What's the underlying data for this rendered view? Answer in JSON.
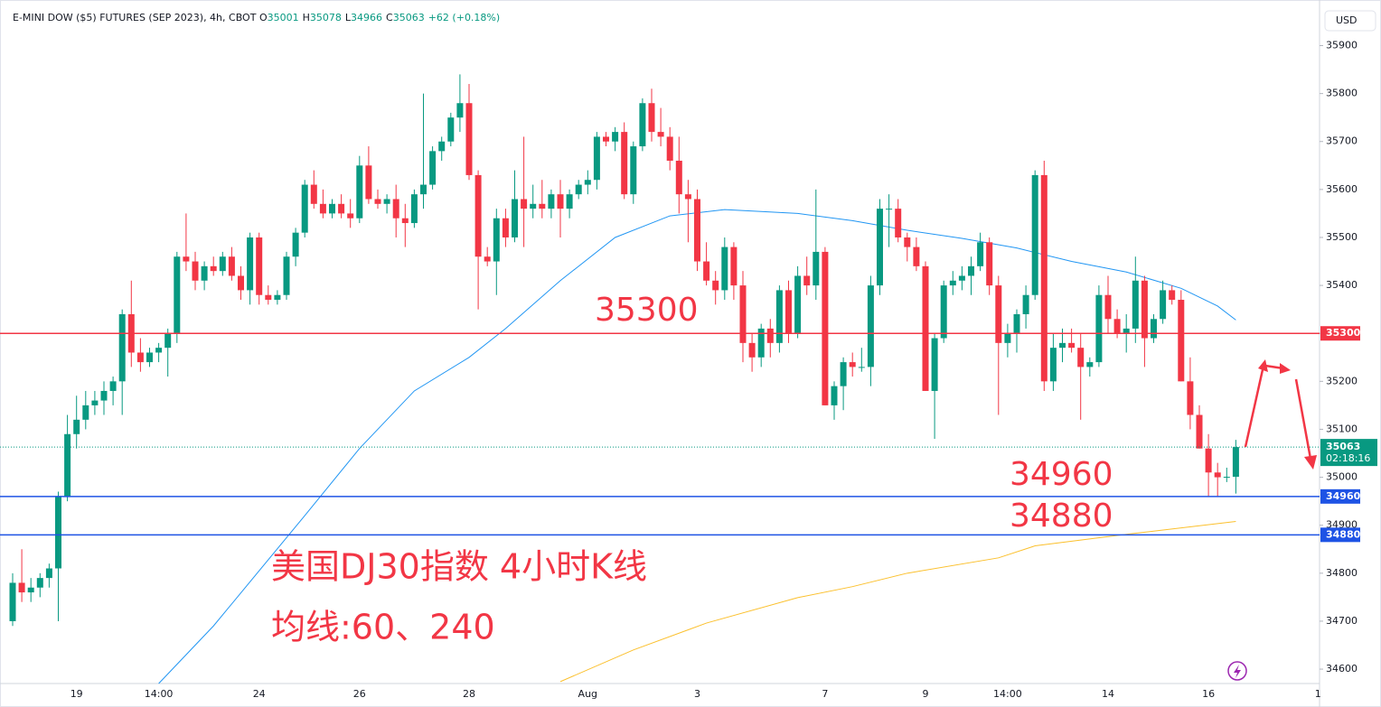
{
  "chart_data": {
    "type": "candlestick",
    "header": {
      "title": "E-MINI DOW ($5) FUTURES (SEP 2023), 4h, CBOT",
      "ohlc_labels": [
        "O",
        "H",
        "L",
        "C"
      ],
      "ohlc": [
        35001,
        35078,
        34966,
        35063
      ],
      "change": "+62 (+0.18%)"
    },
    "currency": "USD",
    "categories": [
      null,
      null,
      null,
      null,
      null,
      null,
      null,
      "19",
      null,
      null,
      null,
      null,
      null,
      null,
      null,
      null,
      "14:00",
      null,
      null,
      null,
      null,
      null,
      null,
      null,
      null,
      null,
      null,
      "24",
      null,
      null,
      null,
      null,
      null,
      null,
      null,
      null,
      null,
      null,
      "26",
      null,
      null,
      null,
      null,
      null,
      null,
      null,
      null,
      null,
      null,
      null,
      "28",
      null,
      null,
      null,
      null,
      null,
      null,
      null,
      null,
      null,
      null,
      null,
      null,
      "Aug",
      null,
      null,
      null,
      null,
      null,
      null,
      null,
      null,
      null,
      null,
      null,
      "3",
      null,
      null,
      null,
      null,
      null,
      null,
      null,
      null,
      null,
      null,
      null,
      null,
      null,
      "7",
      null,
      null,
      null,
      null,
      null,
      null,
      null,
      null,
      null,
      null,
      "9",
      null,
      null,
      null,
      null,
      null,
      null,
      null,
      null,
      "14:00",
      null,
      null,
      null,
      null,
      null,
      null,
      null,
      null,
      null,
      null,
      "14",
      null,
      null,
      null,
      null,
      null,
      null,
      null,
      null,
      null,
      null,
      "16",
      null,
      null,
      null,
      null,
      null,
      null,
      null,
      null,
      null,
      null,
      null,
      "1"
    ],
    "open": [
      34700,
      34780,
      34760,
      34770,
      34790,
      34810,
      34960,
      35090,
      35120,
      35150,
      35160,
      35180,
      35200,
      35340,
      35260,
      35240,
      35260,
      35270,
      35300,
      35460,
      35450,
      35410,
      35440,
      35430,
      35460,
      35420,
      35390,
      35500,
      35380,
      35370,
      35380,
      35460,
      35510,
      35610,
      35570,
      35550,
      35570,
      35550,
      35540,
      35650,
      35580,
      35570,
      35580,
      35540,
      35530,
      35590,
      35610,
      35680,
      35700,
      35750,
      35780,
      35630,
      35460,
      35450,
      35540,
      35500,
      35580,
      35560,
      35570,
      35560,
      35590,
      35560,
      35590,
      35610,
      35620,
      35710,
      35700,
      35720,
      35590,
      35690,
      35780,
      35720,
      35710,
      35660,
      35590,
      35580,
      35450,
      35410,
      35390,
      35480,
      35400,
      35280,
      35250,
      35310,
      35280,
      35390,
      35300,
      35420,
      35400,
      35470,
      35150,
      35190,
      35240,
      35230,
      35230,
      35400,
      35560,
      35560,
      35500,
      35480,
      35440,
      35180,
      35290,
      35400,
      35410,
      35420,
      35440,
      35490,
      35400,
      35280,
      35300,
      35340,
      35380,
      35630,
      35200,
      35270,
      35280,
      35270,
      35230,
      35240,
      35380,
      35330,
      35300,
      35310,
      35410,
      35290,
      35330,
      35390,
      35370,
      35200,
      35130,
      35060,
      35010,
      35000,
      35001,
      null,
      null,
      null,
      null,
      null,
      null,
      null,
      null,
      null
    ],
    "high": [
      34800,
      34850,
      34790,
      34800,
      34820,
      34970,
      35130,
      35170,
      35180,
      35180,
      35200,
      35210,
      35350,
      35410,
      35290,
      35270,
      35280,
      35310,
      35470,
      35550,
      35470,
      35450,
      35460,
      35470,
      35480,
      35440,
      35510,
      35510,
      35400,
      35390,
      35470,
      35520,
      35620,
      35640,
      35600,
      35580,
      35590,
      35580,
      35670,
      35690,
      35600,
      35590,
      35610,
      35570,
      35600,
      35800,
      35690,
      35710,
      35760,
      35840,
      35820,
      35640,
      35480,
      35560,
      35560,
      35640,
      35710,
      35610,
      35620,
      35600,
      35620,
      35600,
      35620,
      35640,
      35720,
      35720,
      35730,
      35740,
      35700,
      35790,
      35810,
      35770,
      35730,
      35710,
      35620,
      35600,
      35490,
      35430,
      35500,
      35490,
      35430,
      35300,
      35320,
      35330,
      35400,
      35410,
      35440,
      35460,
      35600,
      35480,
      35200,
      35250,
      35260,
      35270,
      35420,
      35580,
      35590,
      35580,
      35510,
      35500,
      35450,
      35300,
      35410,
      35430,
      35440,
      35460,
      35510,
      35500,
      35420,
      35320,
      35350,
      35400,
      35640,
      35660,
      35300,
      35310,
      35310,
      35300,
      35250,
      35400,
      35420,
      35350,
      35340,
      35460,
      35420,
      35340,
      35410,
      35400,
      35390,
      35250,
      35150,
      35090,
      35030,
      35020,
      35078,
      null,
      null,
      null,
      null,
      null,
      null,
      null,
      null,
      null
    ],
    "low": [
      34690,
      34740,
      34740,
      34750,
      34770,
      34700,
      34950,
      35060,
      35100,
      35130,
      35130,
      35150,
      35130,
      35230,
      35220,
      35230,
      35240,
      35210,
      35280,
      35430,
      35390,
      35390,
      35420,
      35420,
      35410,
      35370,
      35360,
      35360,
      35360,
      35360,
      35370,
      35440,
      35500,
      35560,
      35540,
      35540,
      35540,
      35520,
      35530,
      35570,
      35560,
      35550,
      35500,
      35480,
      35520,
      35560,
      35600,
      35660,
      35690,
      35720,
      35620,
      35350,
      35440,
      35380,
      35480,
      35490,
      35480,
      35540,
      35540,
      35540,
      35500,
      35540,
      35580,
      35590,
      35600,
      35690,
      35680,
      35580,
      35570,
      35680,
      35700,
      35690,
      35640,
      35550,
      35490,
      35430,
      35400,
      35360,
      35370,
      35370,
      35240,
      35220,
      35230,
      35250,
      35260,
      35280,
      35290,
      35380,
      35370,
      35150,
      35120,
      35140,
      35210,
      35220,
      35190,
      35380,
      35480,
      35490,
      35450,
      35430,
      35180,
      35080,
      35280,
      35380,
      35390,
      35380,
      35430,
      35380,
      35130,
      35250,
      35260,
      35310,
      35370,
      35180,
      35180,
      35240,
      35260,
      35120,
      35210,
      35230,
      35300,
      35290,
      35260,
      35280,
      35230,
      35280,
      35320,
      35360,
      35200,
      35100,
      35060,
      34960,
      34960,
      34990,
      34966,
      null,
      null,
      null,
      null,
      null,
      null,
      null,
      null,
      null
    ],
    "close": [
      34780,
      34760,
      34770,
      34790,
      34810,
      34960,
      35090,
      35120,
      35150,
      35160,
      35180,
      35200,
      35340,
      35260,
      35240,
      35260,
      35270,
      35300,
      35460,
      35450,
      35410,
      35440,
      35430,
      35460,
      35420,
      35390,
      35500,
      35380,
      35370,
      35380,
      35460,
      35510,
      35610,
      35570,
      35550,
      35570,
      35550,
      35540,
      35650,
      35580,
      35570,
      35580,
      35540,
      35530,
      35590,
      35610,
      35680,
      35700,
      35750,
      35780,
      35630,
      35460,
      35450,
      35540,
      35500,
      35580,
      35560,
      35570,
      35560,
      35590,
      35560,
      35590,
      35610,
      35620,
      35710,
      35700,
      35720,
      35590,
      35690,
      35780,
      35720,
      35710,
      35660,
      35590,
      35580,
      35450,
      35410,
      35390,
      35480,
      35400,
      35280,
      35250,
      35310,
      35280,
      35390,
      35300,
      35420,
      35400,
      35470,
      35150,
      35190,
      35240,
      35230,
      35230,
      35400,
      35560,
      35560,
      35500,
      35480,
      35440,
      35180,
      35290,
      35400,
      35410,
      35420,
      35440,
      35490,
      35400,
      35280,
      35300,
      35340,
      35380,
      35630,
      35200,
      35270,
      35280,
      35270,
      35230,
      35240,
      35380,
      35330,
      35300,
      35310,
      35410,
      35290,
      35330,
      35390,
      35370,
      35200,
      35130,
      35060,
      35010,
      35000,
      35001,
      35063,
      null,
      null,
      null,
      null,
      null,
      null,
      null,
      null,
      null
    ],
    "up_color": "#089981",
    "down_color": "#f23645",
    "moving_averages": [
      {
        "color": "#2196f3",
        "x": [
          16,
          22,
          32,
          38,
          44,
          50,
          54,
          60,
          66,
          72,
          78,
          86,
          92,
          98,
          104,
          110,
          116,
          122,
          128,
          132,
          134
        ],
        "values": [
          34570,
          34690,
          34920,
          35060,
          35180,
          35250,
          35310,
          35410,
          35500,
          35545,
          35558,
          35550,
          35535,
          35515,
          35498,
          35478,
          35450,
          35428,
          35394,
          35357,
          35328
        ]
      },
      {
        "color": "#fbc02d",
        "x": [
          60,
          68,
          76,
          86,
          92,
          98,
          108,
          112,
          122,
          134
        ],
        "values": [
          34574,
          34640,
          34696,
          34749,
          34772,
          34800,
          34832,
          34857,
          34881,
          34908
        ]
      }
    ],
    "levels": [
      {
        "value": 35300,
        "color": "#f23645"
      },
      {
        "value": 34960,
        "color": "#1e53e5"
      },
      {
        "value": 34880,
        "color": "#1e53e5"
      }
    ],
    "last_price": 35063,
    "countdown": "02:18:16",
    "last_color": "#089981",
    "annotations": [
      "美国DJ30指数 4小时K线",
      "均线:60、240"
    ],
    "ylim": [
      34570,
      35980
    ],
    "yticks": [
      34600,
      34700,
      34800,
      34900,
      35000,
      35100,
      35200,
      35300,
      35400,
      35500,
      35600,
      35700,
      35800,
      35900
    ],
    "grid": false
  }
}
